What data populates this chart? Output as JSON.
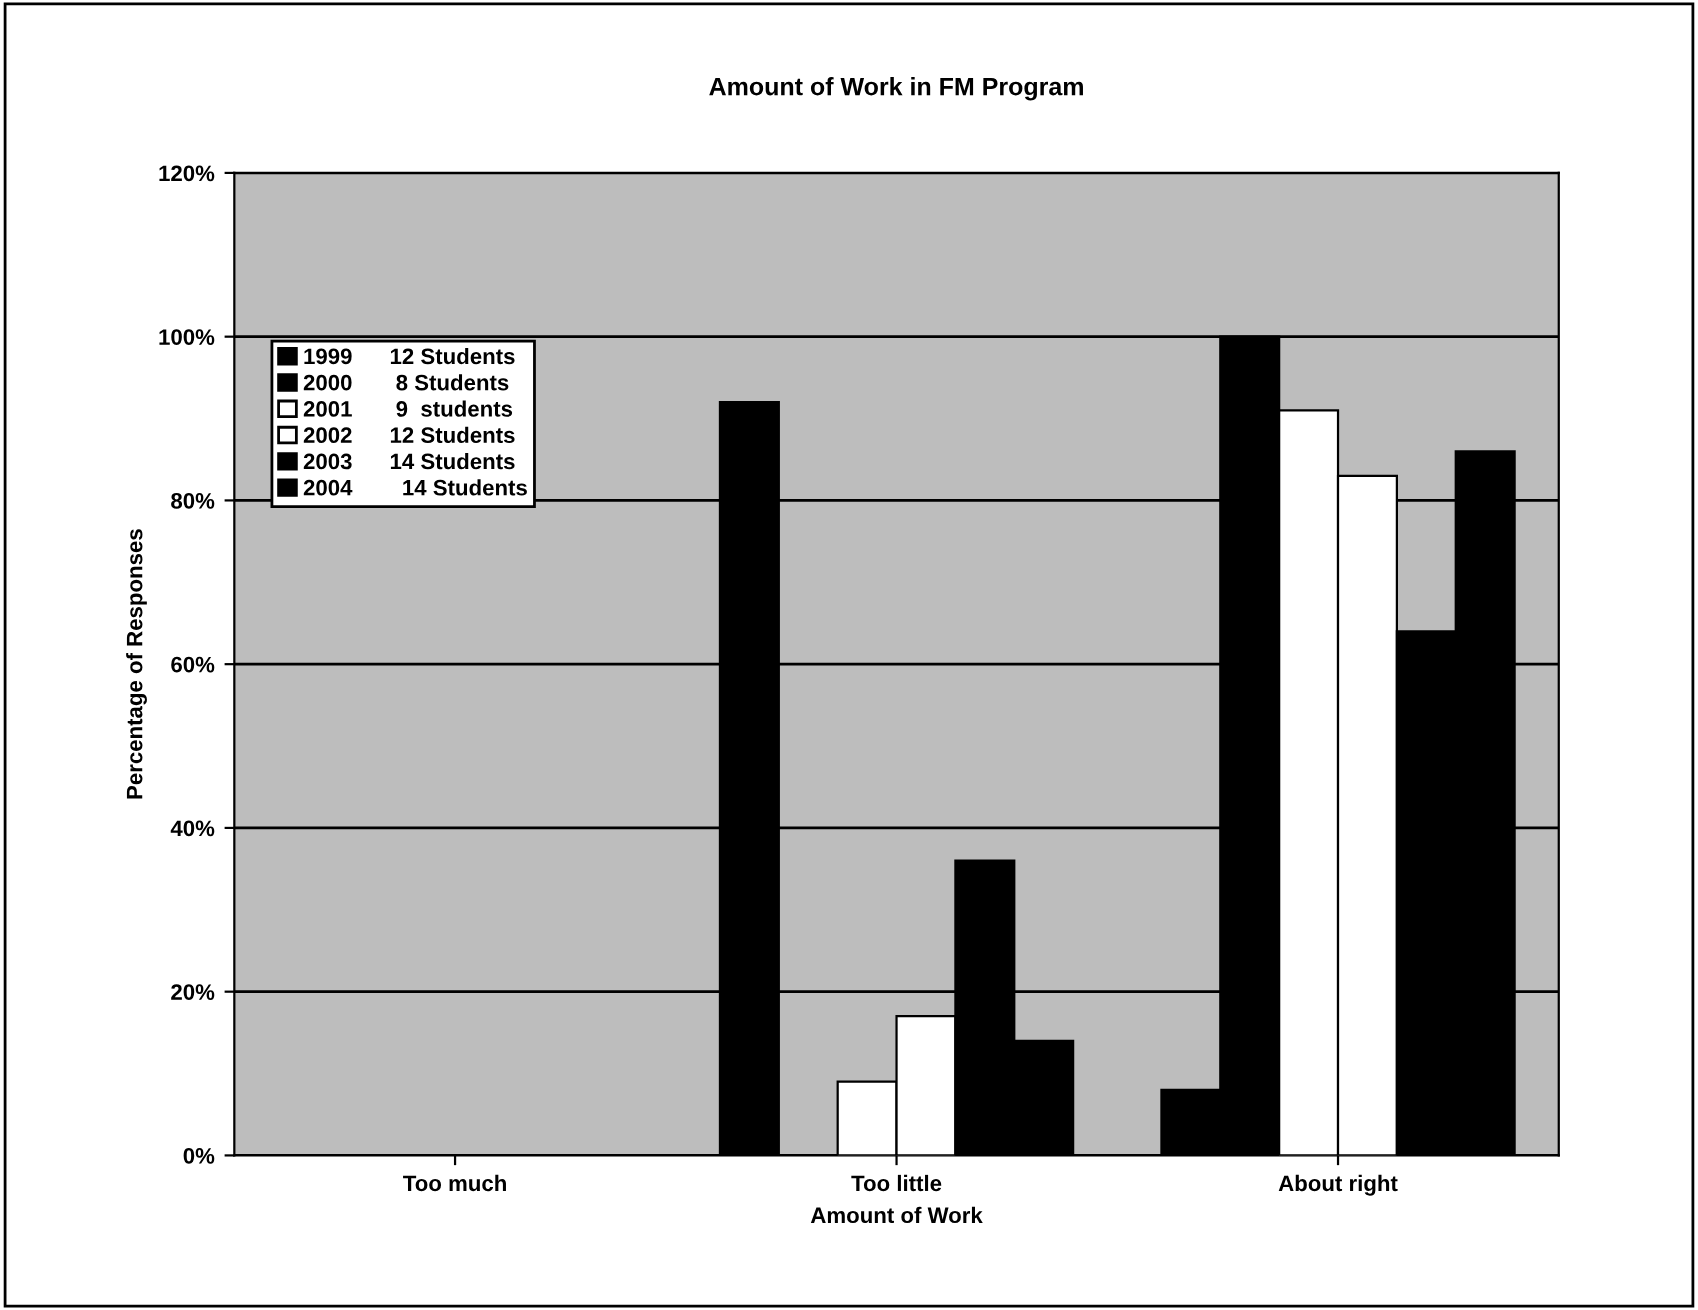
{
  "chart_data": {
    "type": "bar",
    "title": "Amount of Work in FM Program",
    "xlabel": "Amount of Work",
    "ylabel": "Percentage of Responses",
    "categories": [
      "Too much",
      "Too little",
      "About right"
    ],
    "series": [
      {
        "name": "1999      12 Students",
        "color": "#000000",
        "values": [
          null,
          92,
          8
        ]
      },
      {
        "name": "2000       8 Students",
        "color": "#000000",
        "values": [
          null,
          null,
          100
        ]
      },
      {
        "name": "2001       9  students",
        "color": "#ffffff",
        "values": [
          null,
          9,
          91
        ]
      },
      {
        "name": "2002      12 Students",
        "color": "#ffffff",
        "values": [
          null,
          17,
          83
        ]
      },
      {
        "name": "2003      14 Students",
        "color": "#000000",
        "values": [
          null,
          36,
          64
        ]
      },
      {
        "name": "2004        14 Students",
        "color": "#000000",
        "values": [
          null,
          14,
          86
        ]
      }
    ],
    "ylim": [
      0,
      120
    ],
    "yticks": [
      {
        "value": 0,
        "label": "0%"
      },
      {
        "value": 20,
        "label": "20%"
      },
      {
        "value": 40,
        "label": "40%"
      },
      {
        "value": 60,
        "label": "60%"
      },
      {
        "value": 80,
        "label": "80%"
      },
      {
        "value": 100,
        "label": "100%"
      },
      {
        "value": 120,
        "label": "120%"
      }
    ],
    "grid": "y",
    "legend": "top left"
  }
}
